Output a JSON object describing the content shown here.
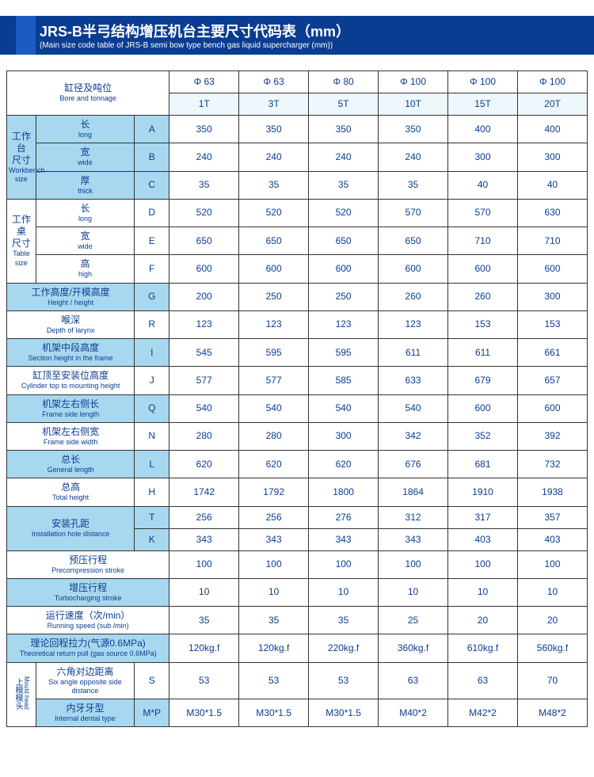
{
  "header": {
    "title_zh": "JRS-B半弓结构增压机台主要尺寸代码表（mm）",
    "title_en": "(Main size code table of JRS-B semi bow type bench gas liquid supercharger (mm))"
  },
  "colHeaders": {
    "bore_zh": "缸径及吨位",
    "bore_en": "Bore and tonnage",
    "dia": [
      "Φ 63",
      "Φ 63",
      "Φ 80",
      "Φ 100",
      "Φ 100",
      "Φ 100"
    ],
    "tonnage": [
      "1T",
      "3T",
      "5T",
      "10T",
      "15T",
      "20T"
    ]
  },
  "groups": {
    "workbench": {
      "zh": "工作台尺寸",
      "en": "Workbench size",
      "rows": [
        {
          "zh": "长",
          "en": "long",
          "code": "A",
          "v": [
            "350",
            "350",
            "350",
            "350",
            "400",
            "400"
          ]
        },
        {
          "zh": "宽",
          "en": "wide",
          "code": "B",
          "v": [
            "240",
            "240",
            "240",
            "240",
            "300",
            "300"
          ]
        },
        {
          "zh": "厚",
          "en": "thick",
          "code": "C",
          "v": [
            "35",
            "35",
            "35",
            "35",
            "40",
            "40"
          ]
        }
      ]
    },
    "tabledesk": {
      "zh": "工作桌尺寸",
      "en": "Table size",
      "rows": [
        {
          "zh": "长",
          "en": "long",
          "code": "D",
          "v": [
            "520",
            "520",
            "520",
            "570",
            "570",
            "630"
          ]
        },
        {
          "zh": "宽",
          "en": "wide",
          "code": "E",
          "v": [
            "650",
            "650",
            "650",
            "650",
            "710",
            "710"
          ]
        },
        {
          "zh": "高",
          "en": "high",
          "code": "F",
          "v": [
            "600",
            "600",
            "600",
            "600",
            "600",
            "600"
          ]
        }
      ]
    },
    "singles": [
      {
        "zh": "工作高度/开模高度",
        "en": "Height / height",
        "code": "G",
        "blue": true,
        "v": [
          "200",
          "250",
          "250",
          "260",
          "260",
          "300"
        ]
      },
      {
        "zh": "喉深",
        "en": "Depth of larynx",
        "code": "R",
        "blue": false,
        "v": [
          "123",
          "123",
          "123",
          "123",
          "153",
          "153"
        ]
      },
      {
        "zh": "机架中段高度",
        "en": "Section height in the frame",
        "code": "I",
        "blue": true,
        "v": [
          "545",
          "595",
          "595",
          "611",
          "611",
          "661"
        ]
      },
      {
        "zh": "缸顶至安装位高度",
        "en": "Cylinder top to mounting height",
        "code": "J",
        "blue": false,
        "v": [
          "577",
          "577",
          "585",
          "633",
          "679",
          "657"
        ]
      },
      {
        "zh": "机架左右侧长",
        "en": "Frame side length",
        "code": "Q",
        "blue": true,
        "v": [
          "540",
          "540",
          "540",
          "540",
          "600",
          "600"
        ]
      },
      {
        "zh": "机架左右侧宽",
        "en": "Frame side width",
        "code": "N",
        "blue": false,
        "v": [
          "280",
          "280",
          "300",
          "342",
          "352",
          "392"
        ]
      },
      {
        "zh": "总长",
        "en": "General length",
        "code": "L",
        "blue": true,
        "v": [
          "620",
          "620",
          "620",
          "676",
          "681",
          "732"
        ]
      },
      {
        "zh": "总高",
        "en": "Total height",
        "code": "H",
        "blue": false,
        "v": [
          "1742",
          "1792",
          "1800",
          "1864",
          "1910",
          "1938"
        ]
      }
    ],
    "install": {
      "zh": "安装孔距",
      "en": "Installation hole distance",
      "blue": true,
      "rows": [
        {
          "code": "T",
          "v": [
            "256",
            "256",
            "276",
            "312",
            "317",
            "357"
          ]
        },
        {
          "code": "K",
          "v": [
            "343",
            "343",
            "343",
            "343",
            "403",
            "403"
          ]
        }
      ]
    },
    "noCode": [
      {
        "zh": "预压行程",
        "en": "Precompression stroke",
        "blue": false,
        "v": [
          "100",
          "100",
          "100",
          "100",
          "100",
          "100"
        ]
      },
      {
        "zh": "增压行程",
        "en": "Turbocharging stroke",
        "blue": true,
        "v": [
          "10",
          "10",
          "10",
          "10",
          "10",
          "10"
        ]
      },
      {
        "zh": "运行速度（次/min）",
        "en": "Running speed (sub /min)",
        "blue": false,
        "v": [
          "35",
          "35",
          "35",
          "25",
          "20",
          "20"
        ]
      },
      {
        "zh": "理论回程拉力(气源0.6MPa)",
        "en": "Theoretical return pull (gas source 0.6MPa)",
        "blue": true,
        "v": [
          "120kg.f",
          "120kg.f",
          "220kg.f",
          "360kg.f",
          "610kg.f",
          "560kg.f"
        ]
      }
    ],
    "mould": {
      "zh": "上模模头",
      "en": "Mould head",
      "rows": [
        {
          "zh": "六角对边距离",
          "en": "Six angle opposite side distance",
          "code": "S",
          "v": [
            "53",
            "53",
            "53",
            "63",
            "63",
            "70"
          ]
        },
        {
          "zh": "内牙牙型",
          "en": "Internal dental type",
          "code": "M*P",
          "v": [
            "M30*1.5",
            "M30*1.5",
            "M30*1.5",
            "M40*2",
            "M42*2",
            "M48*2"
          ]
        }
      ]
    }
  }
}
